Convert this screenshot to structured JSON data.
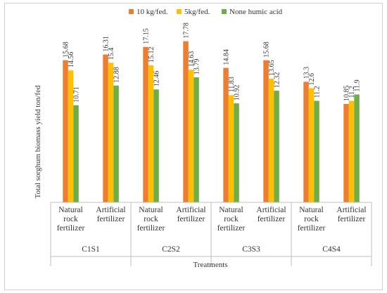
{
  "chart_data": {
    "type": "bar",
    "title": "",
    "ylabel": "Total sorghum biomass yield ton/fed",
    "xlabel": "Treatments",
    "ylim": [
      0,
      20
    ],
    "grid": false,
    "legend_position": "top",
    "groups": [
      {
        "label": "C1S1",
        "categories": [
          [
            "Natural",
            "rock",
            "fertilizer"
          ],
          [
            "Artificial",
            "fertilizer"
          ]
        ]
      },
      {
        "label": "C2S2",
        "categories": [
          [
            "Natural",
            "rock",
            "fertilizer"
          ],
          [
            "Artificial",
            "fertilizer"
          ]
        ]
      },
      {
        "label": "C3S3",
        "categories": [
          [
            "Natural",
            "rock",
            "fertilizer"
          ],
          [
            "Artificial",
            "fertilizer"
          ]
        ]
      },
      {
        "label": "C4S4",
        "categories": [
          [
            "Natural",
            "rock",
            "fertilizer"
          ],
          [
            "Artificial",
            "fertilizer"
          ]
        ]
      }
    ],
    "series": [
      {
        "name": "10 kg/fed.",
        "color": "#ed7d31",
        "values": [
          15.68,
          16.31,
          17.15,
          17.78,
          14.84,
          15.68,
          13.3,
          10.85
        ],
        "labels": [
          "15.68",
          "16.31",
          "17.15",
          "17.78",
          "14.84",
          "15.68",
          "13.3",
          "10.85"
        ]
      },
      {
        "name": "5kg/fed.",
        "color": "#ffc000",
        "values": [
          14.56,
          15.4,
          15.12,
          14.63,
          11.83,
          13.65,
          12.6,
          11.2
        ],
        "labels": [
          "14.56",
          "15.4",
          "15.12",
          "14.63",
          "11.83",
          "13.65",
          "12.6",
          "11.2"
        ]
      },
      {
        "name": "None humic acid",
        "color": "#70ad47",
        "values": [
          10.71,
          12.88,
          12.46,
          13.79,
          10.92,
          12.32,
          11.2,
          11.9
        ],
        "labels": [
          "10.71",
          "12.88",
          "12.46",
          "13.79",
          "10.92",
          "12.32",
          "11.2",
          "11.9"
        ]
      }
    ]
  }
}
